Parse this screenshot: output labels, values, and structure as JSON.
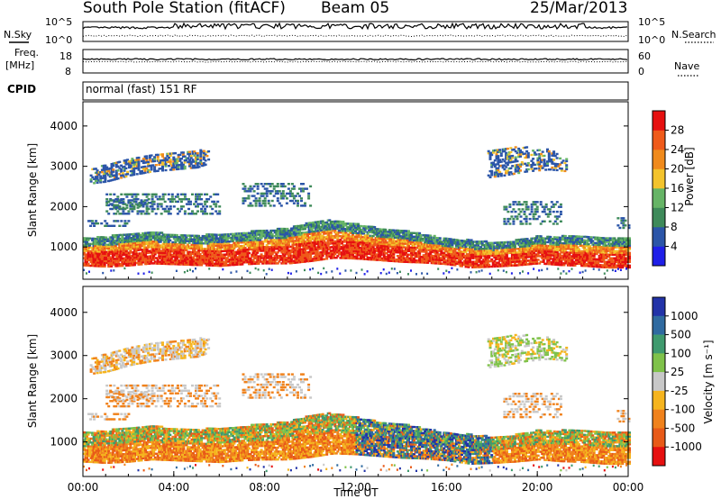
{
  "header": {
    "station": "South Pole Station (fitACF)",
    "beam": "Beam 05",
    "date": "25/Mar/2013"
  },
  "top_panels": {
    "nsky_label": "N.Sky",
    "nsearch_label": "N.Search",
    "noise_ticks": [
      "10^5",
      "10^0"
    ],
    "freq_label_1": "Freq.",
    "freq_label_2": "[MHz]",
    "freq_ticks": [
      "18",
      "8"
    ],
    "nave_label": "Nave",
    "nave_ticks": [
      "60",
      "0"
    ],
    "cpid_label": "CPID",
    "cpid_value": "normal (fast) 151 RF"
  },
  "chart_data": [
    {
      "type": "heatmap",
      "name": "power-panel",
      "ylabel": "Slant Range [km]",
      "ylim": [
        200,
        4600
      ],
      "y_ticks": [
        1000,
        2000,
        3000,
        4000
      ],
      "colorbar_label": "Power [dB]",
      "colorbar_ticks": [
        "4",
        "8",
        "12",
        "16",
        "20",
        "24",
        "28"
      ],
      "colorbar_colors": [
        "#1f1fe8",
        "#2b55a8",
        "#3e8a5a",
        "#66b466",
        "#f3c32c",
        "#f08a1c",
        "#ef5a1a",
        "#e61010"
      ],
      "bands": [
        {
          "name": "main-echo",
          "x": [
            0,
            1,
            2,
            3,
            4,
            5,
            6,
            7,
            8,
            9,
            10,
            11,
            12,
            13,
            14,
            15,
            16,
            17,
            18,
            19,
            20,
            21,
            22,
            23,
            24
          ],
          "y_low": [
            650,
            620,
            650,
            700,
            680,
            660,
            640,
            680,
            700,
            700,
            760,
            840,
            820,
            780,
            740,
            720,
            680,
            600,
            620,
            650,
            700,
            660,
            640,
            600,
            600
          ],
          "y_high": [
            1100,
            1150,
            1200,
            1250,
            1200,
            1180,
            1200,
            1250,
            1300,
            1350,
            1500,
            1550,
            1450,
            1350,
            1300,
            1200,
            1100,
            1050,
            1000,
            1050,
            1150,
            1150,
            1150,
            1100,
            1100
          ]
        },
        {
          "name": "far-echo",
          "x": [
            0.3,
            1,
            2,
            3,
            4,
            5,
            5.5
          ],
          "y_low": [
            2600,
            2650,
            2800,
            2900,
            2950,
            3000,
            3100
          ],
          "y_high": [
            2950,
            3100,
            3250,
            3350,
            3400,
            3450,
            3400
          ]
        },
        {
          "name": "late-far-echo",
          "x": [
            17.8,
            18.5,
            19.5,
            20.5,
            21.3
          ],
          "y_low": [
            2750,
            2800,
            2900,
            2950,
            2900
          ],
          "y_high": [
            3450,
            3500,
            3500,
            3450,
            3200
          ]
        }
      ]
    },
    {
      "type": "heatmap",
      "name": "velocity-panel",
      "ylabel": "Slant Range [km]",
      "xlabel": "Time UT",
      "ylim": [
        200,
        4600
      ],
      "y_ticks": [
        1000,
        2000,
        3000,
        4000
      ],
      "x_ticks": [
        "00:00",
        "04:00",
        "08:00",
        "12:00",
        "16:00",
        "20:00",
        "00:00"
      ],
      "colorbar_label": "Velocity [m s⁻¹]",
      "colorbar_ticks": [
        "1000",
        "500",
        "100",
        "25",
        "-25",
        "-100",
        "-500",
        "-1000"
      ],
      "colorbar_colors": [
        "#2233a8",
        "#2f6aa0",
        "#3f9a6e",
        "#7fc24a",
        "#c8c8c8",
        "#f5b41e",
        "#f0821c",
        "#e85a18",
        "#e61010"
      ]
    }
  ]
}
